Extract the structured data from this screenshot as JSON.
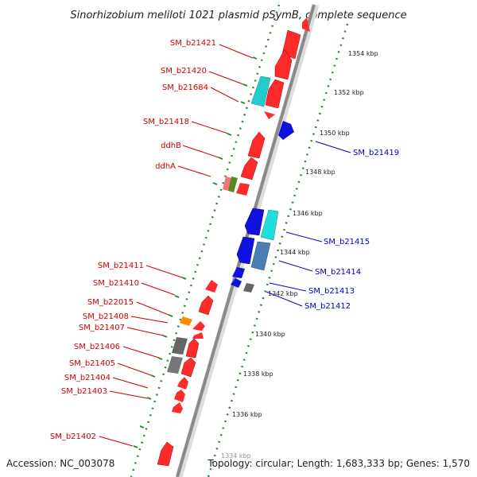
{
  "title": "Sinorhizobium meliloti 1021 plasmid pSymB, complete sequence",
  "footer": {
    "accession": "Accession: NC_003078",
    "topology": "Topology: circular; Length: 1,683,333 bp; Genes: 1,570"
  },
  "colors": {
    "forward_label": "#cc0000",
    "reverse_label": "#0000cc",
    "backbone": "#888888",
    "tick": "#2e8b2e",
    "tick_label_bg": "#ffffff"
  },
  "ticks": [
    {
      "label": "1354 kbp"
    },
    {
      "label": "1352 kbp"
    },
    {
      "label": "1350 kbp"
    },
    {
      "label": "1348 kbp"
    },
    {
      "label": "1346 kbp"
    },
    {
      "label": "1344 kbp"
    },
    {
      "label": "1342 kbp"
    },
    {
      "label": "1340 kbp"
    },
    {
      "label": "1338 kbp"
    },
    {
      "label": "1336 kbp"
    },
    {
      "label": "1334 kbp"
    }
  ],
  "forward_labels": [
    {
      "text": "SM_b21421"
    },
    {
      "text": "SM_b21420"
    },
    {
      "text": "SM_b21684"
    },
    {
      "text": "SM_b21418"
    },
    {
      "text": "ddhB"
    },
    {
      "text": "ddhA"
    },
    {
      "text": "SM_b21411"
    },
    {
      "text": "SM_b21410"
    },
    {
      "text": "SM_b22015"
    },
    {
      "text": "SM_b21408"
    },
    {
      "text": "SM_b21407"
    },
    {
      "text": "SM_b21406"
    },
    {
      "text": "SM_b21405"
    },
    {
      "text": "SM_b21404"
    },
    {
      "text": "SM_b21403"
    },
    {
      "text": "SM_b21402"
    }
  ],
  "reverse_labels": [
    {
      "text": "SM_b21419"
    },
    {
      "text": "SM_b21415"
    },
    {
      "text": "SM_b21414"
    },
    {
      "text": "SM_b21413"
    },
    {
      "text": "SM_b21412"
    }
  ]
}
